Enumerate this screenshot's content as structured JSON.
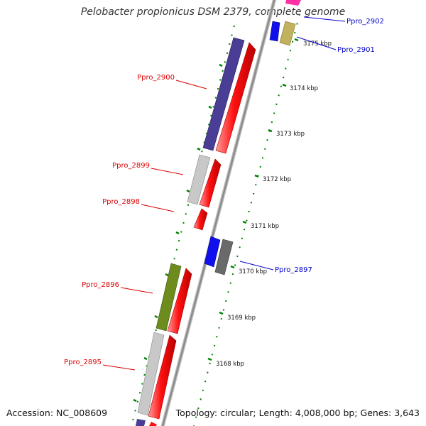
{
  "title": "Pelobacter propionicus DSM 2379, complete genome",
  "footer": {
    "accession": "Accession: NC_008609",
    "summary": "Topology: circular; Length: 4,008,000 bp; Genes: 3,643"
  },
  "ticks": [
    {
      "label": "3175 kbp"
    },
    {
      "label": "3174 kbp"
    },
    {
      "label": "3173 kbp"
    },
    {
      "label": "3172 kbp"
    },
    {
      "label": "3171 kbp"
    },
    {
      "label": "3170 kbp"
    },
    {
      "label": "3169 kbp"
    },
    {
      "label": "3168 kbp"
    }
  ],
  "gene_labels": [
    {
      "id": "ppro_2902",
      "text": "Ppro_2902",
      "strand": "forward",
      "color": "#0000cc"
    },
    {
      "id": "ppro_2901",
      "text": "Ppro_2901",
      "strand": "forward",
      "color": "#0000cc"
    },
    {
      "id": "ppro_2900",
      "text": "Ppro_2900",
      "strand": "reverse",
      "color": "#dd0000"
    },
    {
      "id": "ppro_2899",
      "text": "Ppro_2899",
      "strand": "reverse",
      "color": "#dd0000"
    },
    {
      "id": "ppro_2898",
      "text": "Ppro_2898",
      "strand": "reverse",
      "color": "#dd0000"
    },
    {
      "id": "ppro_2897",
      "text": "Ppro_2897",
      "strand": "forward",
      "color": "#0000cc"
    },
    {
      "id": "ppro_2896",
      "text": "Ppro_2896",
      "strand": "reverse",
      "color": "#dd0000"
    },
    {
      "id": "ppro_2895",
      "text": "Ppro_2895",
      "strand": "reverse",
      "color": "#dd0000"
    }
  ],
  "colors": {
    "backbone": "#909090",
    "tick": "#008000",
    "cds": "#ff0000",
    "gene_blue": "#0000ee",
    "gene_navy": "#4a3d96",
    "gene_olive": "#c2b25e",
    "gene_magenta": "#ff2fa6",
    "gene_green": "#6e8c1e",
    "gene_grey": "#c0c0c0",
    "gene_darkgrey": "#6a6a6a"
  }
}
